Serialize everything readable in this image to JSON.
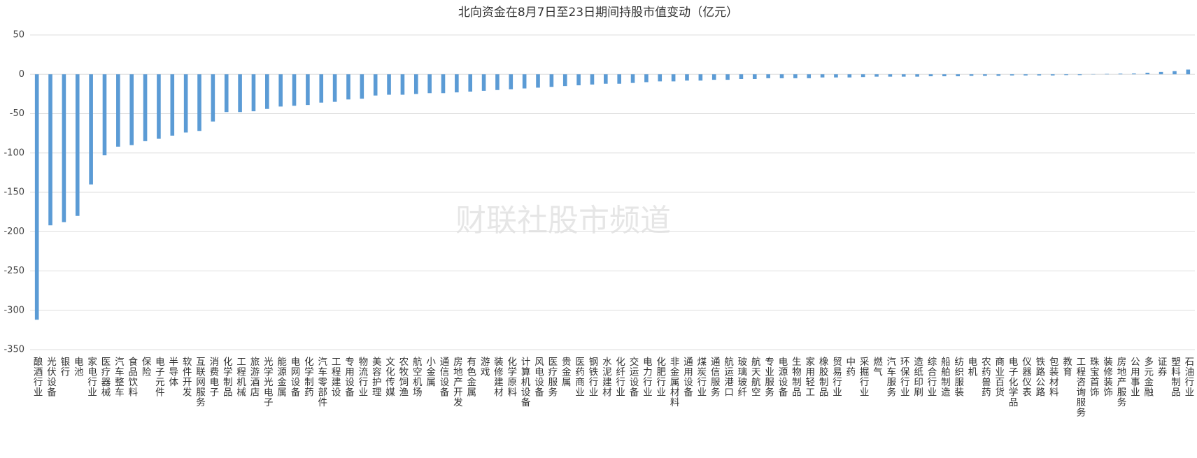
{
  "chart_data": {
    "type": "bar",
    "title": "北向资金在8月7日至23日期间持股市值变动（亿元）",
    "watermark": "财联社股市频道",
    "categories": [
      "酿酒行业",
      "光伏设备",
      "银行",
      "电池",
      "家电行业",
      "医疗器械",
      "汽车整车",
      "食品饮料",
      "保险",
      "电子元件",
      "半导体",
      "软件开发",
      "互联网服务",
      "消费电子",
      "化学制品",
      "工程机械",
      "旅游酒店",
      "光学光电子",
      "能源金属",
      "电网设备",
      "化学制药",
      "汽车零部件",
      "工程建设",
      "专用设备",
      "物流行业",
      "美容护理",
      "文化传媒",
      "农牧饲渔",
      "航空机场",
      "小金属",
      "通信设备",
      "房地产开发",
      "有色金属",
      "游戏",
      "装修建材",
      "化学原料",
      "计算机设备",
      "风电设备",
      "医疗服务",
      "贵金属",
      "医药商业",
      "钢铁行业",
      "水泥建材",
      "化纤行业",
      "交运设备",
      "电力行业",
      "化肥行业",
      "非金属材料",
      "通用设备",
      "煤炭行业",
      "通信服务",
      "航运港口",
      "玻璃玻纤",
      "航天航空",
      "专业服务",
      "电源设备",
      "生物制品",
      "家用轻工",
      "橡胶制品",
      "贸易行业",
      "中药",
      "采掘行业",
      "燃气",
      "汽车服务",
      "环保行业",
      "造纸印刷",
      "综合行业",
      "船舶制造",
      "纺织服装",
      "电机",
      "农药兽药",
      "商业百货",
      "电子化学品",
      "仪器仪表",
      "铁路公路",
      "包装材料",
      "教育",
      "工程咨询服务",
      "珠宝首饰",
      "装修装饰",
      "房地产服务",
      "公用事业",
      "多元金融",
      "证券",
      "塑料制品",
      "石油行业"
    ],
    "values": [
      -312,
      -192,
      -188,
      -180,
      -140,
      -103,
      -92,
      -90,
      -85,
      -82,
      -78,
      -74,
      -72,
      -60,
      -48,
      -48,
      -47,
      -44,
      -41,
      -40,
      -39,
      -36,
      -35,
      -32,
      -31,
      -27,
      -26,
      -26,
      -25,
      -24,
      -24,
      -23,
      -22,
      -21,
      -20,
      -19,
      -18,
      -17,
      -16,
      -15,
      -14,
      -13,
      -12,
      -12,
      -11,
      -10,
      -9,
      -9,
      -8,
      -8,
      -7,
      -7,
      -6,
      -6,
      -5,
      -5,
      -5,
      -5,
      -4,
      -4,
      -4,
      -3.5,
      -3,
      -3,
      -3,
      -3,
      -2.5,
      -2.5,
      -2.5,
      -2,
      -2,
      -2,
      -1.5,
      -1.5,
      -1.5,
      -1.5,
      -1,
      -1,
      0.3,
      0.5,
      0.8,
      1,
      2,
      3,
      4,
      6
    ],
    "color": "#5b9bd5",
    "ylim": [
      -350,
      50
    ],
    "yticks": [
      50,
      0,
      -50,
      -100,
      -150,
      -200,
      -250,
      -300,
      -350
    ],
    "grid": true
  }
}
